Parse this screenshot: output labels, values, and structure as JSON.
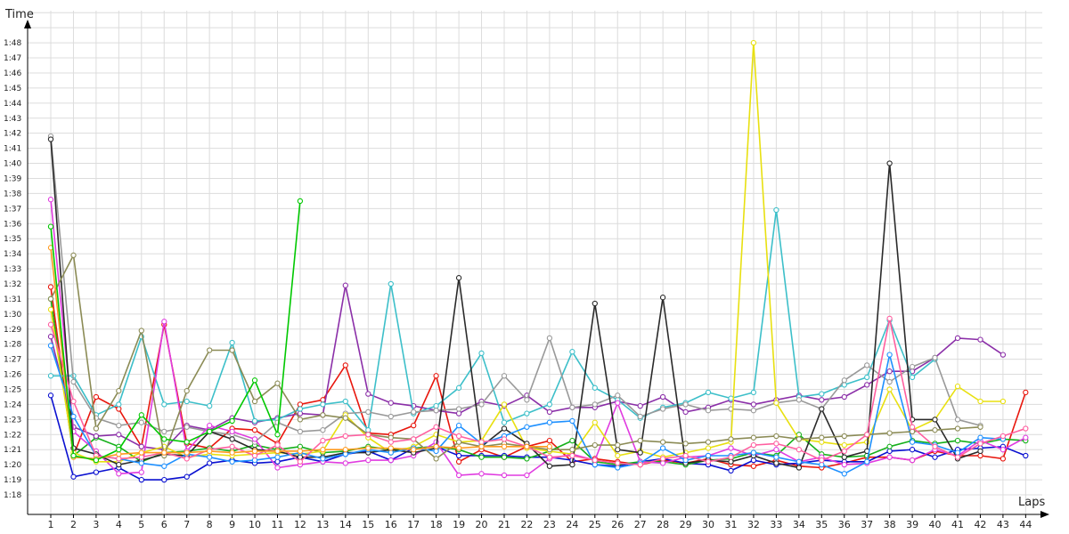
{
  "chart_data": {
    "type": "line",
    "title": "",
    "xlabel": "Laps",
    "ylabel": "Time",
    "grid": true,
    "legend": "none",
    "x": [
      1,
      2,
      3,
      4,
      5,
      6,
      7,
      8,
      9,
      10,
      11,
      12,
      13,
      14,
      15,
      16,
      17,
      18,
      19,
      20,
      21,
      22,
      23,
      24,
      25,
      26,
      27,
      28,
      29,
      30,
      31,
      32,
      33,
      34,
      35,
      36,
      37,
      38,
      39,
      40,
      41,
      42,
      43,
      44
    ],
    "xlim": [
      1,
      44
    ],
    "ylim_seconds": [
      76,
      111
    ],
    "y_unit": "m:ss",
    "y_tick_labels": [
      "1:18",
      "1:19",
      "1:20",
      "1:21",
      "1:22",
      "1:23",
      "1:24",
      "1:25",
      "1:26",
      "1:27",
      "1:28",
      "1:29",
      "1:30",
      "1:31",
      "1:32",
      "1:33",
      "1:34",
      "1:35",
      "1:36",
      "1:37",
      "1:38",
      "1:39",
      "1:40",
      "1:41",
      "1:42",
      "1:43",
      "1:44",
      "1:45",
      "1:46",
      "1:47",
      "1:48"
    ],
    "series": [
      {
        "color": "#e8160c",
        "values": [
          91.8,
          80.6,
          84.5,
          83.7,
          81.2,
          89.3,
          81.4,
          81.1,
          82.4,
          82.3,
          81.4,
          84.0,
          84.3,
          86.6,
          82.1,
          82.0,
          82.6,
          85.9,
          80.2,
          81.0,
          80.5,
          81.2,
          81.6,
          80.2,
          80.4,
          80.2,
          80.0,
          80.3,
          80.1,
          80.4,
          80.0,
          79.9,
          80.3,
          79.9,
          79.8,
          80.1,
          80.5,
          80.5,
          80.3,
          80.9,
          80.6,
          80.6,
          80.4,
          84.8
        ]
      },
      {
        "color": "#0a10d0",
        "values": [
          84.6,
          79.2,
          79.5,
          79.8,
          79.0,
          79.0,
          79.2,
          80.1,
          80.3,
          80.1,
          80.2,
          80.5,
          80.2,
          80.7,
          80.9,
          80.3,
          81.1,
          81.2,
          80.6,
          80.6,
          80.6,
          80.5,
          80.5,
          80.3,
          80.0,
          79.9,
          80.2,
          80.4,
          80.1,
          80.0,
          79.6,
          80.3,
          80.0,
          80.1,
          80.3,
          80.2,
          80.2,
          80.9,
          81.0,
          80.5,
          81.0,
          81.1,
          81.2,
          80.6
        ]
      },
      {
        "color": "#15b01a",
        "values": [
          91.0,
          80.6,
          81.8,
          81.2,
          80.2,
          80.8,
          80.9,
          81.1,
          80.9,
          81.3,
          81.0,
          81.2,
          80.8,
          80.9,
          81.2,
          81.0,
          81.1,
          81.2,
          81.0,
          80.5,
          80.5,
          80.4,
          80.9,
          81.6,
          80.2,
          80.0,
          80.2,
          80.2,
          80.0,
          80.3,
          80.4,
          80.8,
          80.6,
          82.0,
          80.7,
          80.5,
          80.6,
          81.2,
          81.6,
          81.4,
          81.6,
          81.4,
          81.7,
          81.6
        ]
      },
      {
        "color": "#8b2fa8",
        "values": [
          88.5,
          82.5,
          81.9,
          82.0,
          81.2,
          81.0,
          82.6,
          82.3,
          83.1,
          82.8,
          83.1,
          83.4,
          83.3,
          91.9,
          84.7,
          84.1,
          83.9,
          83.6,
          83.4,
          84.2,
          83.9,
          84.6,
          83.5,
          83.8,
          83.8,
          84.2,
          83.9,
          84.5,
          83.5,
          83.8,
          84.3,
          84.0,
          84.3,
          84.6,
          84.3,
          84.5,
          85.3,
          86.2,
          86.2,
          87.1,
          88.4,
          88.3,
          87.3,
          null
        ]
      },
      {
        "color": "#3cbfc9",
        "values": [
          85.9,
          85.9,
          83.3,
          84.0,
          88.5,
          84.0,
          84.2,
          83.9,
          88.1,
          82.9,
          83.0,
          83.7,
          84.0,
          84.2,
          82.3,
          92.0,
          83.4,
          83.9,
          85.1,
          87.4,
          82.8,
          83.4,
          84.0,
          87.5,
          85.1,
          84.3,
          83.1,
          83.8,
          84.1,
          84.8,
          84.4,
          84.8,
          96.9,
          84.5,
          84.7,
          85.3,
          85.8,
          89.6,
          85.8,
          87.0,
          null,
          null,
          null,
          null
        ]
      },
      {
        "color": "#999999",
        "values": [
          101.8,
          85.5,
          83.1,
          82.6,
          82.8,
          82.2,
          82.5,
          82.2,
          82.0,
          81.5,
          82.8,
          82.2,
          82.3,
          83.4,
          83.5,
          83.2,
          83.5,
          83.6,
          83.7,
          84.0,
          85.9,
          84.3,
          88.4,
          83.8,
          84.0,
          84.6,
          83.2,
          83.7,
          84.0,
          83.6,
          83.7,
          83.6,
          84.1,
          84.3,
          83.7,
          85.6,
          86.6,
          85.5,
          86.5,
          87.1,
          83.0,
          82.6,
          null,
          null
        ]
      },
      {
        "color": "#e03be0",
        "values": [
          97.6,
          82.2,
          80.9,
          79.4,
          79.5,
          89.5,
          80.9,
          82.6,
          82.2,
          81.7,
          79.8,
          80.0,
          80.2,
          80.1,
          80.3,
          80.3,
          80.6,
          81.5,
          79.3,
          79.4,
          79.3,
          79.3,
          80.4,
          80.7,
          80.3,
          84.1,
          80.2,
          80.1,
          80.5,
          80.6,
          81.1,
          80.6,
          81.0,
          80.2,
          80.5,
          80.0,
          80.1,
          80.5,
          80.3,
          81.0,
          80.6,
          81.6,
          81.0,
          81.8
        ]
      },
      {
        "color": "#e8e010",
        "values": [
          90.3,
          80.8,
          80.2,
          80.2,
          80.8,
          81.2,
          80.5,
          80.7,
          80.6,
          80.7,
          80.8,
          80.7,
          80.9,
          83.3,
          81.8,
          80.8,
          81.2,
          82.0,
          81.5,
          81.6,
          84.0,
          81.1,
          80.9,
          80.7,
          82.8,
          80.6,
          80.9,
          80.5,
          80.8,
          81.1,
          81.5,
          108.0,
          84.1,
          81.7,
          81.5,
          81.3,
          81.5,
          85.0,
          82.3,
          83.0,
          85.2,
          84.2,
          84.2,
          null
        ]
      },
      {
        "color": "#2a2a2a",
        "values": [
          101.6,
          81.1,
          80.7,
          80.0,
          80.3,
          80.7,
          80.6,
          82.2,
          81.7,
          81.0,
          80.9,
          80.5,
          80.5,
          80.8,
          80.8,
          81.0,
          80.8,
          81.1,
          92.4,
          81.2,
          82.4,
          81.4,
          79.9,
          80.0,
          90.7,
          81.0,
          80.8,
          91.1,
          80.1,
          80.3,
          80.2,
          80.6,
          80.1,
          79.8,
          83.7,
          80.5,
          80.9,
          100.0,
          83.0,
          83.0,
          80.4,
          80.9,
          null,
          null
        ]
      },
      {
        "color": "#1e90ff",
        "values": [
          87.9,
          83.2,
          80.6,
          80.4,
          80.1,
          79.9,
          80.7,
          80.5,
          80.2,
          80.3,
          80.5,
          80.8,
          80.4,
          80.7,
          81.0,
          80.8,
          81.1,
          80.9,
          82.6,
          81.4,
          81.9,
          82.5,
          82.8,
          82.9,
          80.0,
          79.8,
          80.1,
          81.1,
          80.3,
          80.6,
          80.6,
          80.8,
          80.5,
          80.2,
          80.0,
          79.4,
          80.2,
          87.3,
          81.5,
          81.3,
          80.8,
          81.8,
          81.7,
          null
        ]
      },
      {
        "color": "#8b8b55",
        "values": [
          91.0,
          93.9,
          82.4,
          84.9,
          88.9,
          80.6,
          84.9,
          87.6,
          87.6,
          84.2,
          85.4,
          83.0,
          83.3,
          83.1,
          82.0,
          81.8,
          81.7,
          80.4,
          81.5,
          81.2,
          81.4,
          81.2,
          81.0,
          81.0,
          81.3,
          81.3,
          81.6,
          81.5,
          81.4,
          81.5,
          81.7,
          81.8,
          81.9,
          81.7,
          81.8,
          81.9,
          82.0,
          82.1,
          82.2,
          82.3,
          82.4,
          82.5,
          null,
          null
        ]
      },
      {
        "color": "#ff5fa0",
        "values": [
          89.3,
          84.2,
          80.6,
          80.4,
          80.5,
          80.8,
          80.4,
          81.0,
          81.2,
          80.6,
          81.3,
          80.2,
          81.6,
          81.9,
          82.0,
          81.5,
          81.7,
          82.5,
          81.9,
          81.5,
          81.7,
          81.2,
          80.5,
          80.6,
          80.3,
          80.1,
          80.0,
          80.4,
          80.6,
          80.2,
          80.5,
          81.3,
          81.4,
          81.0,
          80.3,
          80.9,
          82.0,
          89.7,
          82.5,
          81.2,
          80.5,
          81.4,
          81.9,
          82.4
        ]
      },
      {
        "color": "#ff9a1f",
        "values": [
          94.4,
          80.5,
          80.4,
          80.7,
          80.8,
          80.8,
          80.8,
          80.9,
          80.8,
          80.9,
          80.9,
          80.9,
          81.0,
          81.0,
          81.1,
          81.1,
          81.0,
          81.2,
          81.1,
          81.2,
          81.2,
          81.2,
          81.2,
          null,
          null,
          null,
          null,
          null,
          null,
          null,
          null,
          null,
          null,
          null,
          null,
          null,
          null,
          null,
          null,
          null,
          null,
          null,
          null,
          null
        ]
      },
      {
        "color": "#00c800",
        "values": [
          95.8,
          80.6,
          80.3,
          81.0,
          83.3,
          81.7,
          81.5,
          82.2,
          82.9,
          85.6,
          82.0,
          97.5,
          null,
          null,
          null,
          null,
          null,
          null,
          null,
          null,
          null,
          null,
          null,
          null,
          null,
          null,
          null,
          null,
          null,
          null,
          null,
          null,
          null,
          null,
          null,
          null,
          null,
          null,
          null,
          null,
          null,
          null,
          null,
          null
        ]
      }
    ]
  }
}
